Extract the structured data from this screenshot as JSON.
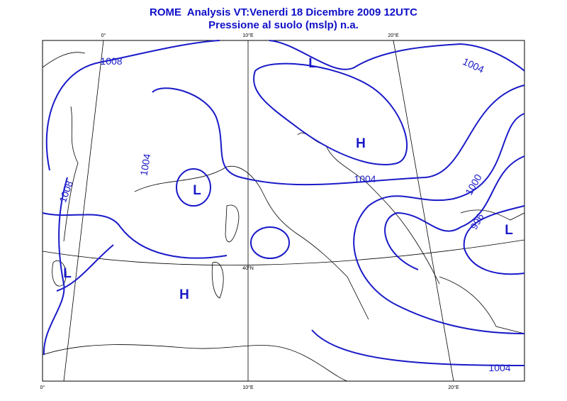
{
  "header": {
    "title": "ROME  Analysis VT:Venerdi 18 Dicembre 2009 12UTC",
    "subtitle": "Pressione al suolo (mslp) n.a."
  },
  "grid_labels": {
    "top": [
      "0°",
      "10°E",
      "20°E"
    ],
    "left": [
      "40°N"
    ],
    "bottom": [
      "0°",
      "10°E",
      "20°E"
    ]
  },
  "isobar_labels": [
    "1008",
    "1004",
    "1008",
    "1004",
    "1004",
    "1000",
    "996",
    "1004"
  ],
  "pressure_centers": [
    "L",
    "H",
    "L",
    "L",
    "L",
    "H"
  ]
}
